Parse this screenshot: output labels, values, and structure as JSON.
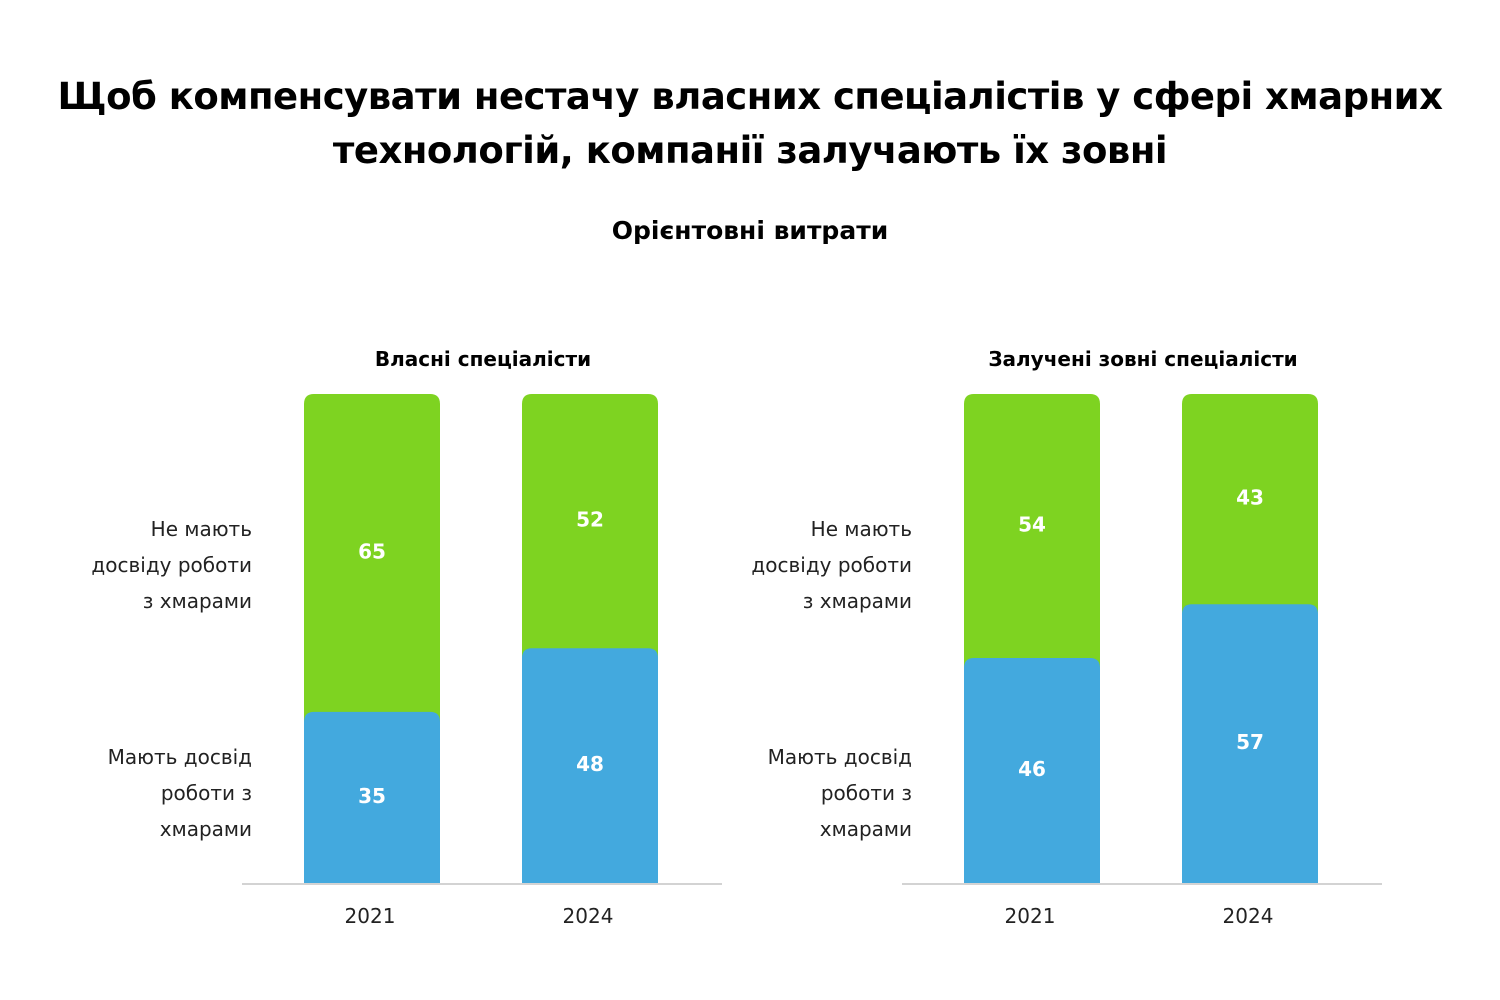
{
  "title": "Щоб компенсувати нестачу власних спеціалістів у сфері хмарних технологій, компанії залучають їх зовні",
  "subtitle": "Орієнтовні витрати",
  "chart_data": [
    {
      "type": "bar",
      "stacked": true,
      "title": "Власні спеціалісти",
      "categories": [
        "2021",
        "2024"
      ],
      "series": [
        {
          "name": "Мають досвід роботи з хмарами",
          "values": [
            35,
            48
          ],
          "color": "#43a9de"
        },
        {
          "name": "Не мають досвіду роботи з хмарами",
          "values": [
            65,
            52
          ],
          "color": "#7ed321"
        }
      ],
      "ylim": [
        0,
        100
      ],
      "grid": false
    },
    {
      "type": "bar",
      "stacked": true,
      "title": "Залучені зовні спеціалісти",
      "categories": [
        "2021",
        "2024"
      ],
      "series": [
        {
          "name": "Мають досвід роботи з хмарами",
          "values": [
            46,
            57
          ],
          "color": "#43a9de"
        },
        {
          "name": "Не мають досвіду роботи з хмарами",
          "values": [
            54,
            43
          ],
          "color": "#7ed321"
        }
      ],
      "ylim": [
        0,
        100
      ],
      "grid": false
    }
  ]
}
